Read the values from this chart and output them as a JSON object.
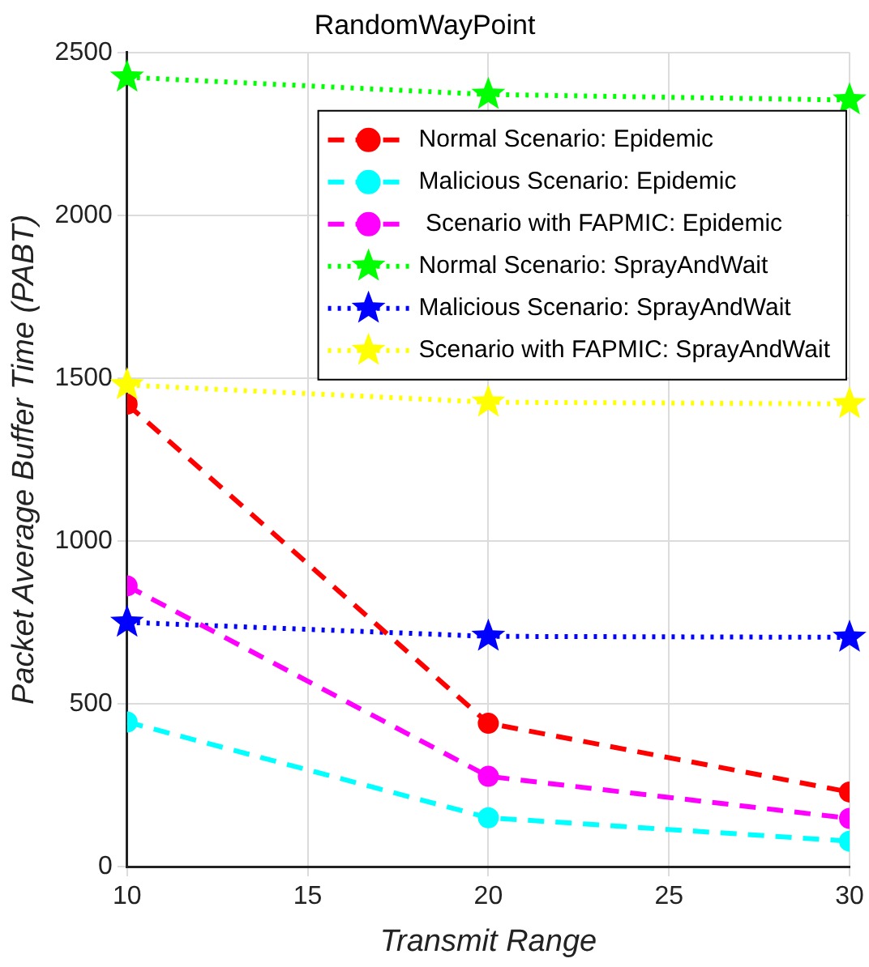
{
  "chart_data": {
    "type": "line",
    "title": "RandomWayPoint",
    "xlabel": "Transmit Range",
    "ylabel": "Packet Average Buffer Time (PABT)",
    "x": [
      10,
      20,
      30
    ],
    "series": [
      {
        "name": "Normal Scenario: Epidemic",
        "color": "#ff0000",
        "values": [
          1420,
          440,
          229
        ],
        "marker": "circle",
        "line_style": "dashed"
      },
      {
        "name": "Malicious Scenario: Epidemic",
        "color": "#00ffff",
        "values": [
          444,
          150,
          78
        ],
        "marker": "circle",
        "line_style": "dashed"
      },
      {
        "name": " Scenario with FAPMIC: Epidemic",
        "color": "#ff00ff",
        "values": [
          862,
          277,
          148
        ],
        "marker": "circle",
        "line_style": "dashed"
      },
      {
        "name": "Normal Scenario: SprayAndWait",
        "color": "#00ff00",
        "values": [
          2424,
          2371,
          2354
        ],
        "marker": "star",
        "line_style": "dotted"
      },
      {
        "name": "Malicious Scenario: SprayAndWait",
        "color": "#0000ff",
        "values": [
          750,
          707,
          704
        ],
        "marker": "star",
        "line_style": "dotted"
      },
      {
        "name": "Scenario with FAPMIC: SprayAndWait",
        "color": "#ffff00",
        "values": [
          1479,
          1426,
          1421
        ],
        "marker": "star",
        "line_style": "dotted"
      }
    ],
    "xlim": [
      10,
      30
    ],
    "xticks": [
      10,
      15,
      20,
      25,
      30
    ],
    "ylim": [
      0,
      2500
    ],
    "yticks": [
      0,
      500,
      1000,
      1500,
      2000,
      2500
    ],
    "grid": true,
    "legend": "top right"
  }
}
